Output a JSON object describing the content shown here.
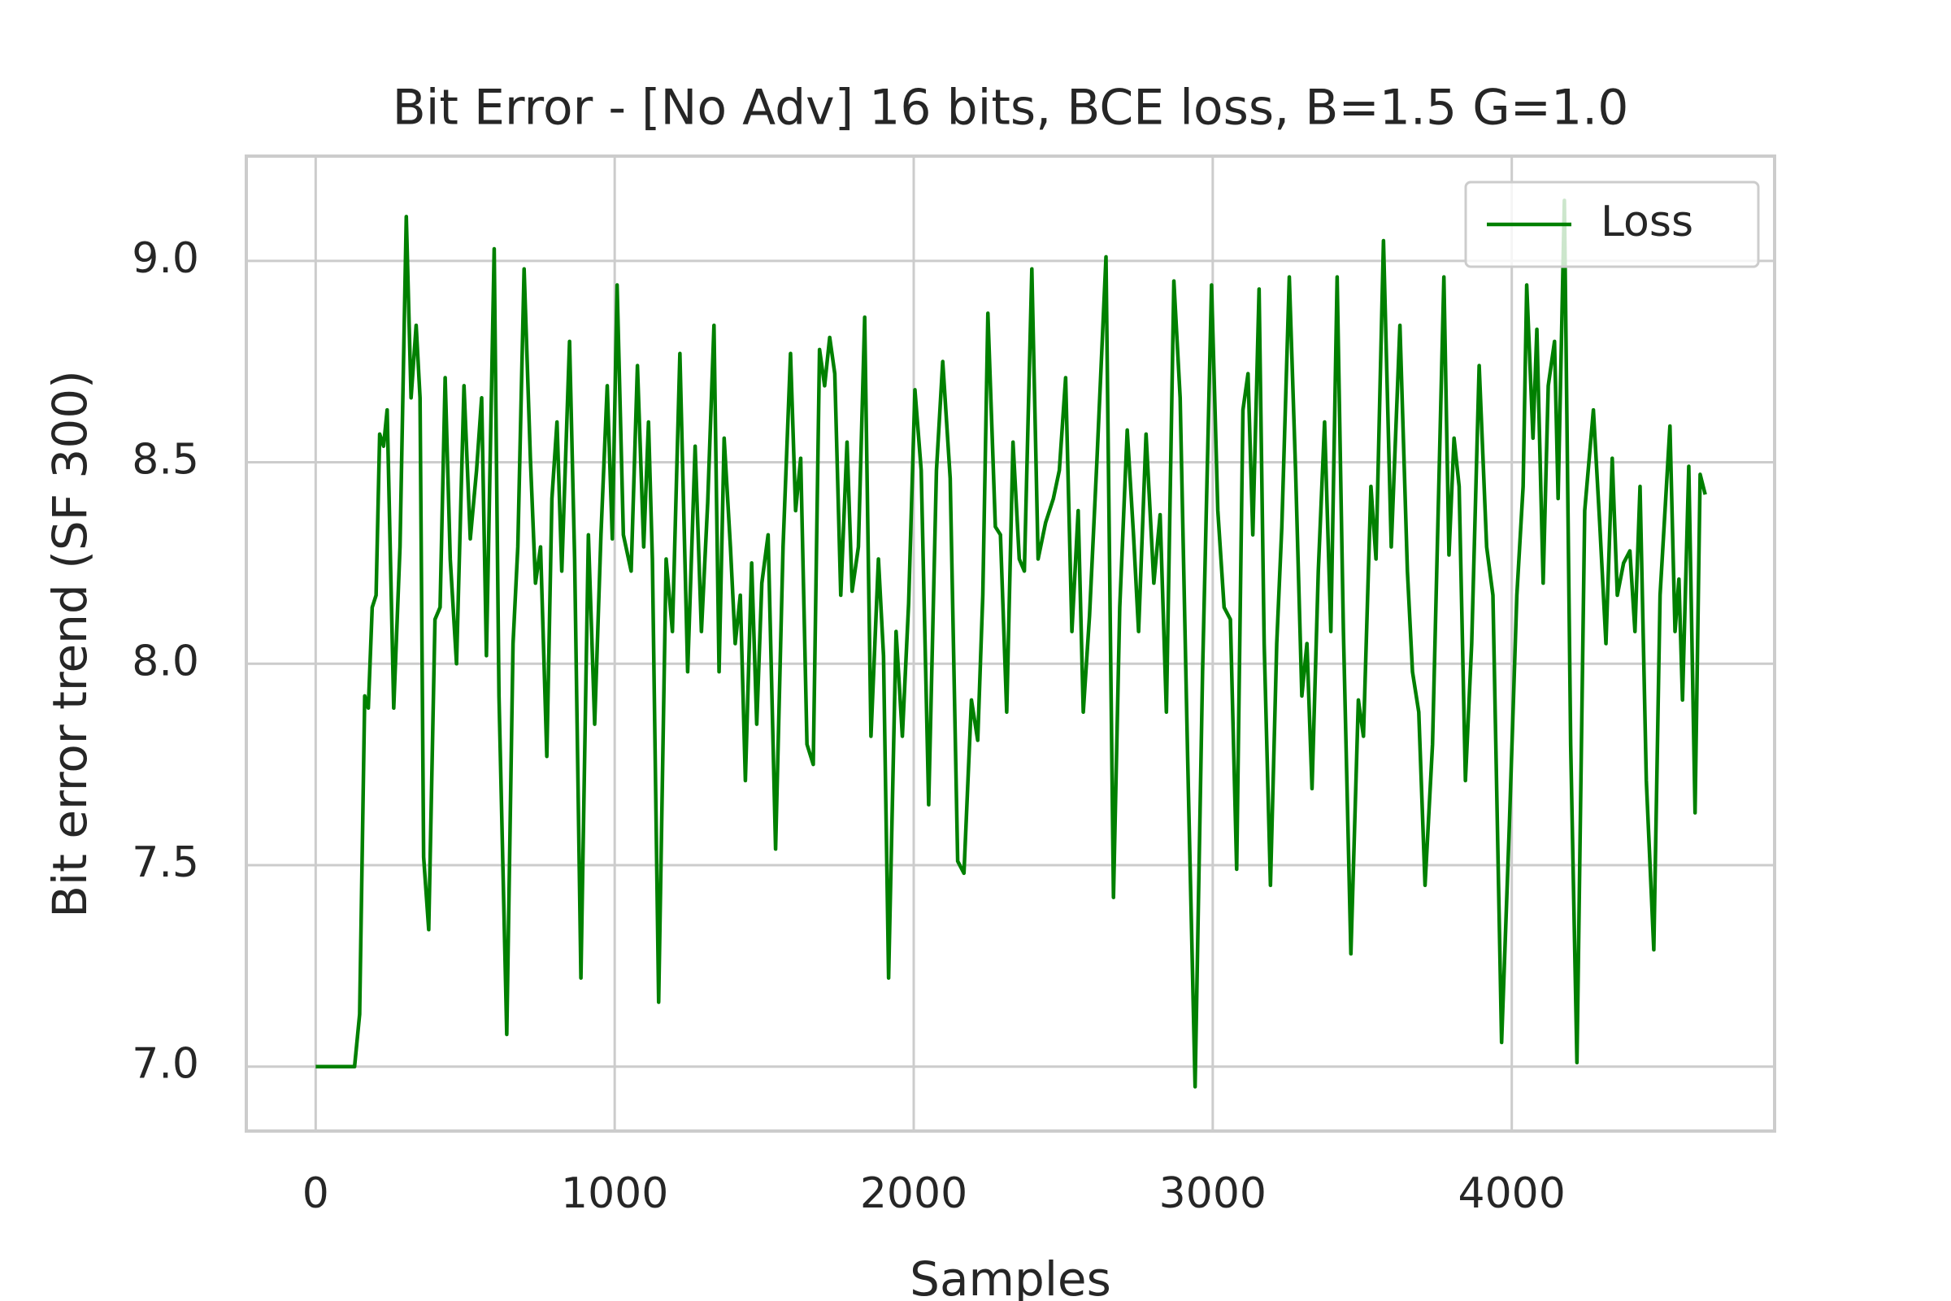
{
  "chart_data": {
    "type": "line",
    "title": "Bit Error - [No Adv] 16 bits, BCE loss, B=1.5 G=1.0",
    "xlabel": "Samples",
    "ylabel": "Bit error trend (SF 300)",
    "xlim": [
      -232,
      4879
    ],
    "ylim": [
      6.84,
      9.26
    ],
    "xticks": [
      0,
      1000,
      2000,
      3000,
      4000
    ],
    "yticks": [
      {
        "value": 7,
        "label": "7.0"
      },
      7.5,
      {
        "value": 8,
        "label": "8.0"
      },
      8.5,
      {
        "value": 9,
        "label": "9.0"
      }
    ],
    "grid": true,
    "legend": "upper right",
    "x": [
      0,
      130,
      147,
      164,
      176,
      189,
      202,
      214,
      227,
      239,
      261,
      282,
      303,
      319,
      336,
      349,
      361,
      378,
      399,
      416,
      433,
      450,
      471,
      496,
      517,
      538,
      555,
      571,
      597,
      613,
      639,
      660,
      676,
      697,
      718,
      735,
      752,
      773,
      790,
      807,
      823,
      849,
      866,
      887,
      912,
      933,
      954,
      975,
      992,
      1008,
      1029,
      1055,
      1076,
      1097,
      1113,
      1126,
      1147,
      1172,
      1193,
      1218,
      1244,
      1269,
      1290,
      1311,
      1332,
      1349,
      1366,
      1387,
      1403,
      1420,
      1437,
      1458,
      1475,
      1492,
      1513,
      1538,
      1563,
      1588,
      1605,
      1622,
      1643,
      1664,
      1685,
      1702,
      1719,
      1736,
      1756,
      1777,
      1794,
      1815,
      1836,
      1857,
      1882,
      1899,
      1916,
      1941,
      1962,
      1983,
      2004,
      2025,
      2050,
      2076,
      2097,
      2122,
      2147,
      2168,
      2193,
      2214,
      2231,
      2248,
      2273,
      2290,
      2311,
      2332,
      2353,
      2370,
      2395,
      2416,
      2441,
      2467,
      2487,
      2508,
      2529,
      2550,
      2567,
      2588,
      2613,
      2643,
      2668,
      2689,
      2714,
      2735,
      2752,
      2777,
      2803,
      2824,
      2845,
      2870,
      2891,
      2916,
      2941,
      2966,
      2996,
      3017,
      3038,
      3059,
      3080,
      3101,
      3118,
      3134,
      3155,
      3172,
      3193,
      3214,
      3231,
      3256,
      3277,
      3298,
      3315,
      3332,
      3353,
      3374,
      3395,
      3416,
      3437,
      3462,
      3487,
      3504,
      3529,
      3546,
      3571,
      3597,
      3626,
      3651,
      3668,
      3689,
      3710,
      3735,
      3756,
      3773,
      3790,
      3807,
      3824,
      3845,
      3866,
      3891,
      3916,
      3937,
      3966,
      3992,
      4017,
      4038,
      4050,
      4071,
      4084,
      4105,
      4122,
      4143,
      4155,
      4176,
      4197,
      4218,
      4244,
      4273,
      4294,
      4315,
      4336,
      4353,
      4374,
      4395,
      4412,
      4429,
      4450,
      4475,
      4496,
      4529,
      4546,
      4559,
      4571,
      4592,
      4613,
      4630,
      4647
    ],
    "series": [
      {
        "name": "Loss",
        "color": "#008000",
        "values": [
          7.0,
          7.0,
          7.13,
          7.92,
          7.89,
          8.14,
          8.17,
          8.57,
          8.54,
          8.63,
          7.89,
          8.29,
          9.11,
          8.66,
          8.84,
          8.66,
          7.52,
          7.34,
          8.11,
          8.14,
          8.71,
          8.26,
          8.0,
          8.69,
          8.31,
          8.48,
          8.66,
          8.02,
          9.03,
          7.92,
          7.08,
          8.05,
          8.29,
          8.98,
          8.51,
          8.2,
          8.29,
          7.77,
          8.41,
          8.6,
          8.23,
          8.8,
          8.26,
          7.22,
          8.32,
          7.85,
          8.32,
          8.69,
          8.31,
          8.94,
          8.32,
          8.23,
          8.74,
          8.29,
          8.6,
          8.26,
          7.16,
          8.26,
          8.08,
          8.77,
          7.98,
          8.54,
          8.08,
          8.4,
          8.84,
          7.98,
          8.56,
          8.29,
          8.05,
          8.17,
          7.71,
          8.25,
          7.85,
          8.2,
          8.32,
          7.54,
          8.29,
          8.77,
          8.38,
          8.51,
          7.8,
          7.75,
          8.78,
          8.69,
          8.81,
          8.72,
          8.17,
          8.55,
          8.18,
          8.29,
          8.86,
          7.82,
          8.26,
          8.02,
          7.22,
          8.08,
          7.82,
          8.15,
          8.68,
          8.48,
          7.65,
          8.48,
          8.75,
          8.46,
          7.51,
          7.48,
          7.91,
          7.81,
          8.17,
          8.87,
          8.34,
          8.32,
          7.88,
          8.55,
          8.26,
          8.23,
          8.98,
          8.26,
          8.35,
          8.41,
          8.48,
          8.71,
          8.08,
          8.38,
          7.88,
          8.12,
          8.51,
          9.01,
          7.42,
          8.14,
          8.58,
          8.32,
          8.08,
          8.57,
          8.2,
          8.37,
          7.88,
          8.95,
          8.66,
          7.77,
          6.95,
          7.98,
          8.94,
          8.38,
          8.14,
          8.11,
          7.49,
          8.63,
          8.72,
          8.32,
          8.93,
          8.05,
          7.45,
          8.05,
          8.34,
          8.96,
          8.48,
          7.92,
          8.05,
          7.69,
          8.23,
          8.6,
          8.08,
          8.96,
          8.08,
          7.28,
          7.91,
          7.82,
          8.44,
          8.26,
          9.05,
          8.29,
          8.84,
          8.23,
          7.98,
          7.88,
          7.45,
          7.8,
          8.44,
          8.96,
          8.27,
          8.56,
          8.44,
          7.71,
          8.05,
          8.74,
          8.29,
          8.17,
          7.06,
          7.6,
          8.17,
          8.44,
          8.94,
          8.56,
          8.83,
          8.2,
          8.69,
          8.8,
          8.41,
          9.15,
          7.8,
          7.01,
          8.38,
          8.63,
          8.35,
          8.05,
          8.51,
          8.17,
          8.25,
          8.28,
          8.08,
          8.44,
          7.71,
          7.29,
          8.17,
          8.59,
          8.08,
          8.21,
          7.91,
          8.49,
          7.63,
          8.47,
          8.42
        ]
      }
    ]
  }
}
